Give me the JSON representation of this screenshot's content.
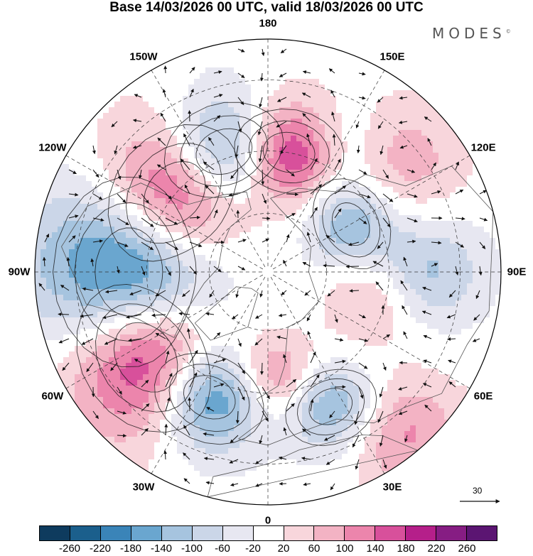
{
  "title": "Base 14/03/2026 00 UTC, valid 18/03/2026 00 UTC",
  "brand": {
    "name": "MODES",
    "mark": "©"
  },
  "longitude_labels": [
    {
      "text": "180",
      "position": "top"
    },
    {
      "text": "150E",
      "position": "top-right"
    },
    {
      "text": "120E",
      "position": "right-upper"
    },
    {
      "text": "90E",
      "position": "right"
    },
    {
      "text": "60E",
      "position": "right-lower"
    },
    {
      "text": "30E",
      "position": "bottom-right"
    },
    {
      "text": "0",
      "position": "bottom"
    },
    {
      "text": "30W",
      "position": "bottom-left"
    },
    {
      "text": "60W",
      "position": "left-lower"
    },
    {
      "text": "90W",
      "position": "left"
    },
    {
      "text": "120W",
      "position": "left-upper"
    },
    {
      "text": "150W",
      "position": "top-left"
    }
  ],
  "vector_reference": {
    "label": "30"
  },
  "colorbar": {
    "colors": [
      "#0e3b5e",
      "#1b5f8c",
      "#3a84b8",
      "#6aa6cf",
      "#a6c4df",
      "#cbd6e8",
      "#e7e7f1",
      "#ffffff",
      "#f8d6dc",
      "#f3b3c4",
      "#ec85ac",
      "#d8509b",
      "#b51f8a",
      "#861d83",
      "#5b1572"
    ],
    "ticks": [
      "-260",
      "-220",
      "-180",
      "-140",
      "-100",
      "-60",
      "-20",
      "20",
      "60",
      "100",
      "140",
      "180",
      "220",
      "260"
    ]
  },
  "anomaly_centers": [
    {
      "name": "low-north-america-west",
      "lon": -90,
      "lat": 45,
      "value": -280,
      "spread": 18
    },
    {
      "name": "high-gulf-of-alaska",
      "lon": -130,
      "lat": 50,
      "value": 260,
      "spread": 15
    },
    {
      "name": "low-aleutians",
      "lon": -160,
      "lat": 48,
      "value": -230,
      "spread": 12
    },
    {
      "name": "high-kamchatka",
      "lon": 170,
      "lat": 50,
      "value": 220,
      "spread": 11
    },
    {
      "name": "high-north-atlantic",
      "lon": -55,
      "lat": 42,
      "value": 270,
      "spread": 15
    },
    {
      "name": "low-mid-atlantic",
      "lon": -25,
      "lat": 45,
      "value": -230,
      "spread": 11
    },
    {
      "name": "high-europe-west",
      "lon": 5,
      "lat": 55,
      "value": 120,
      "spread": 9
    },
    {
      "name": "low-europe-east",
      "lon": 25,
      "lat": 42,
      "value": -150,
      "spread": 9
    },
    {
      "name": "low-siberia",
      "lon": 120,
      "lat": 58,
      "value": -140,
      "spread": 10
    },
    {
      "name": "low-central-asia",
      "lon": 90,
      "lat": 38,
      "value": -110,
      "spread": 10
    },
    {
      "name": "low-east-siberia",
      "lon": 150,
      "lat": 42,
      "value": -70,
      "spread": 9
    },
    {
      "name": "high-japan-sea",
      "lon": 130,
      "lat": 35,
      "value": 90,
      "spread": 11
    },
    {
      "name": "high-north-africa",
      "lon": 40,
      "lat": 25,
      "value": 110,
      "spread": 10
    },
    {
      "name": "high-siberia-north",
      "lon": 75,
      "lat": 55,
      "value": 70,
      "spread": 10
    }
  ]
}
